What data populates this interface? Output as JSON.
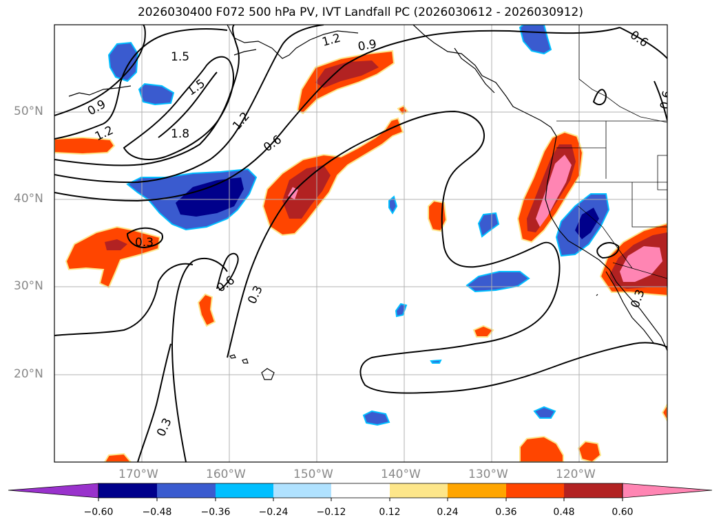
{
  "title": "2026030400 F072 500 hPa PV, IVT Landfall PC (2026030612 - 2026030912)",
  "axes": {
    "lon_labels": [
      "170°W",
      "160°W",
      "150°W",
      "140°W",
      "130°W",
      "120°W"
    ],
    "lat_labels": [
      "50°N",
      "40°N",
      "30°N",
      "20°N"
    ]
  },
  "contour_labels": [
    "1.5",
    "1.2",
    "0.9",
    "0.6",
    "1.5",
    "0.9",
    "1.2",
    "1.8",
    "1.2",
    "0.6",
    "0.6",
    "0.3",
    "0.6",
    "0.3",
    "0.3",
    "0.3"
  ],
  "colorbar": {
    "ticks": [
      "−0.60",
      "−0.48",
      "−0.36",
      "−0.24",
      "−0.12",
      "0.12",
      "0.24",
      "0.36",
      "0.48",
      "0.60"
    ],
    "colors": [
      "#9932cc",
      "#00008b",
      "#3a5bcf",
      "#00bfff",
      "#b0e2ff",
      "#ffffff",
      "#fde68a",
      "#ffa500",
      "#ff4500",
      "#b22222",
      "#ff85b3"
    ]
  },
  "chart_data": {
    "type": "map",
    "projection": "plate carree",
    "lon_range": [
      -180,
      -110
    ],
    "lat_range": [
      10,
      60
    ],
    "grid": true,
    "fill_field": "IVT landfall PC",
    "contour_field": "500 hPa PV",
    "contour_levels": [
      0.3,
      0.6,
      0.9,
      1.2,
      1.5,
      1.8
    ]
  }
}
